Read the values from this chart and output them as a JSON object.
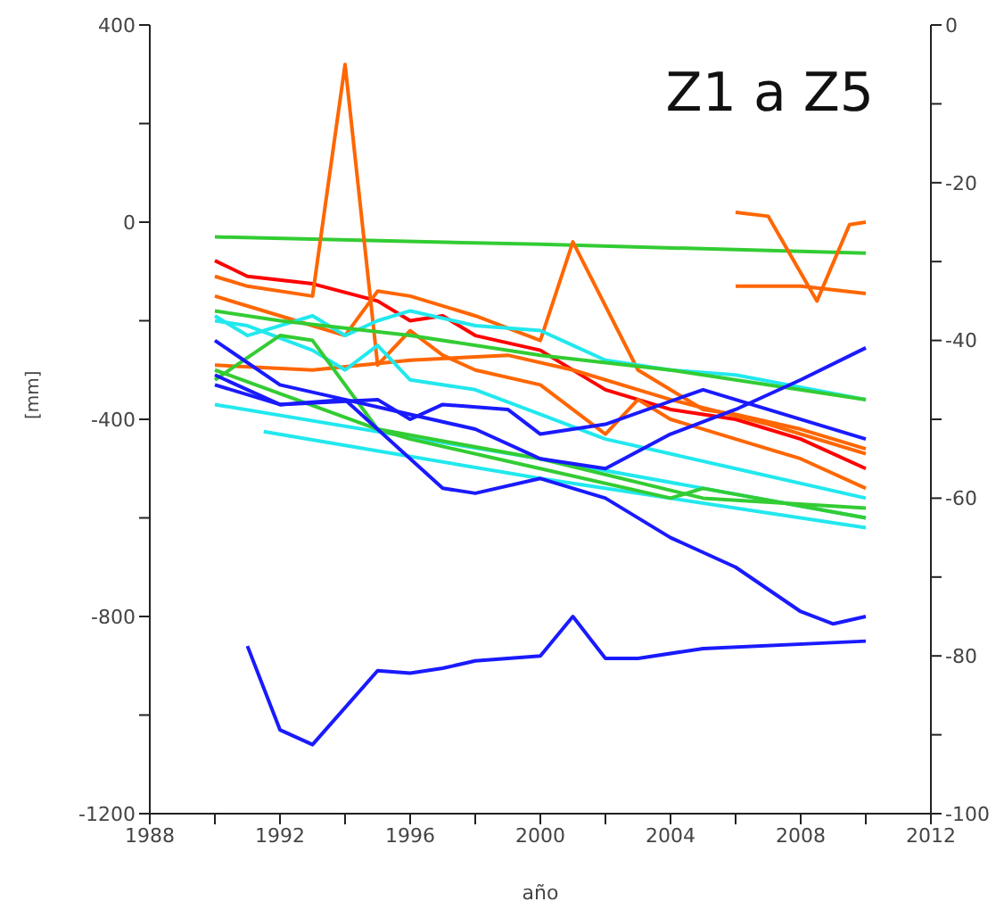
{
  "chart_data": {
    "type": "line",
    "title": "Z1 a Z5",
    "xlabel": "año",
    "ylabel": "[mm]",
    "xlim": [
      1988,
      2012
    ],
    "xticks": [
      1988,
      {
        "value": 1990,
        "label": null
      },
      1992,
      {
        "value": 1994,
        "label": null
      },
      1996,
      {
        "value": 1998,
        "label": null
      },
      2000,
      {
        "value": 2002,
        "label": null
      },
      2004,
      {
        "value": 2006,
        "label": null
      },
      2008,
      {
        "value": 2010,
        "label": null
      },
      2012
    ],
    "ylim": [
      -1200,
      400
    ],
    "yticks": [
      -1200,
      {
        "value": -1000,
        "label": null
      },
      -800,
      {
        "value": -600,
        "label": null
      },
      -400,
      {
        "value": -200,
        "label": null
      },
      0,
      {
        "value": 200,
        "label": null
      },
      400
    ],
    "y2lim": [
      -100,
      0
    ],
    "y2ticks": [
      -100,
      {
        "value": -90,
        "label": null
      },
      -80,
      {
        "value": -70,
        "label": null
      },
      -60,
      {
        "value": -50,
        "label": null
      },
      -40,
      {
        "value": -30,
        "label": null
      },
      -20,
      {
        "value": -10,
        "label": null
      },
      0
    ],
    "series": [
      {
        "color": "#33cc33",
        "x": [
          1990,
          2000,
          2010
        ],
        "values": [
          -30,
          -45,
          -63
        ]
      },
      {
        "color": "#ff0000",
        "x": [
          1990,
          1991,
          1993,
          1995,
          1996,
          1997,
          1998,
          2000,
          2002,
          2004,
          2006,
          2008,
          2010
        ],
        "values": [
          -78,
          -110,
          -125,
          -160,
          -200,
          -190,
          -230,
          -260,
          -340,
          -380,
          -400,
          -440,
          -500
        ]
      },
      {
        "color": "#ff6600",
        "x": [
          1990,
          1991,
          1993,
          1994,
          1995,
          1996,
          1997,
          1998,
          2000,
          2002,
          2003,
          2004,
          2006,
          2008,
          2010
        ],
        "values": [
          -110,
          -130,
          -150,
          320,
          -290,
          -220,
          -270,
          -300,
          -330,
          -430,
          -360,
          -400,
          -440,
          -480,
          -540
        ]
      },
      {
        "color": "#ff6600",
        "x": [
          1990,
          1992,
          1994,
          1995,
          1996,
          1998,
          2000,
          2001,
          2003,
          2005,
          2006,
          2008,
          2010
        ],
        "values": [
          -150,
          -190,
          -230,
          -140,
          -150,
          -190,
          -240,
          -40,
          -300,
          -380,
          -390,
          -420,
          -460
        ]
      },
      {
        "color": "#ff6600",
        "x": [
          1990,
          1993,
          1996,
          1999,
          2001,
          2004,
          2007,
          2010
        ],
        "values": [
          -290,
          -300,
          -280,
          -270,
          -300,
          -360,
          -410,
          -470
        ]
      },
      {
        "color": "#ff6600",
        "x": [
          2006,
          2007,
          2008.5,
          2009.5,
          2010
        ],
        "values": [
          20,
          12,
          -160,
          -5,
          0
        ]
      },
      {
        "color": "#ff6600",
        "x": [
          2006,
          2008,
          2010
        ],
        "values": [
          -130,
          -130,
          -145
        ]
      },
      {
        "color": "#22e8ee",
        "x": [
          1990,
          1991,
          1993,
          1994,
          1995,
          1996,
          1998,
          2000,
          2001,
          2002,
          2004,
          2006,
          2010
        ],
        "values": [
          -190,
          -230,
          -190,
          -230,
          -200,
          -180,
          -210,
          -220,
          -250,
          -280,
          -300,
          -310,
          -360
        ]
      },
      {
        "color": "#22e8ee",
        "x": [
          1990,
          1991,
          1993,
          1994,
          1995,
          1996,
          1998,
          2000,
          2002,
          2006,
          2010
        ],
        "values": [
          -200,
          -210,
          -260,
          -300,
          -250,
          -320,
          -340,
          -390,
          -440,
          -500,
          -560
        ]
      },
      {
        "color": "#22e8ee",
        "x": [
          1990,
          2000,
          2010
        ],
        "values": [
          -370,
          -480,
          -600
        ]
      },
      {
        "color": "#22e8ee",
        "x": [
          1991.5,
          2000,
          2010
        ],
        "values": [
          -425,
          -520,
          -620
        ]
      },
      {
        "color": "#33cc33",
        "x": [
          1990,
          1992,
          1996,
          2000,
          2004,
          2010
        ],
        "values": [
          -180,
          -200,
          -230,
          -270,
          -300,
          -360
        ]
      },
      {
        "color": "#33cc33",
        "x": [
          1990,
          1992,
          1993,
          1995,
          1996,
          2000,
          2004,
          2005,
          2010
        ],
        "values": [
          -320,
          -230,
          -240,
          -420,
          -440,
          -500,
          -560,
          -540,
          -600
        ]
      },
      {
        "color": "#33cc33",
        "x": [
          1990,
          1995,
          2000,
          2005,
          2010
        ],
        "values": [
          -300,
          -420,
          -480,
          -560,
          -580
        ]
      },
      {
        "color": "#1a1aff",
        "x": [
          1990,
          1992,
          1994,
          1997,
          1998,
          2000,
          2002,
          2004,
          2006,
          2008,
          2009,
          2010
        ],
        "values": [
          -240,
          -330,
          -360,
          -540,
          -550,
          -520,
          -560,
          -640,
          -700,
          -790,
          -815,
          -800
        ]
      },
      {
        "color": "#1a1aff",
        "x": [
          1990,
          1992,
          1994,
          1996,
          1998,
          2000,
          2002,
          2004,
          2006,
          2008,
          2010
        ],
        "values": [
          -330,
          -370,
          -360,
          -390,
          -420,
          -480,
          -500,
          -430,
          -380,
          -320,
          -255
        ]
      },
      {
        "color": "#1a1aff",
        "x": [
          1990,
          1992,
          1995,
          1996,
          1997,
          1999,
          2000,
          2002,
          2005,
          2010
        ],
        "values": [
          -310,
          -370,
          -360,
          -400,
          -370,
          -380,
          -430,
          -410,
          -340,
          -440
        ]
      },
      {
        "color": "#1a1aff",
        "x": [
          1991,
          1992,
          1993,
          1995,
          1996,
          1997,
          1998,
          2000,
          2001,
          2002,
          2003,
          2005,
          2010
        ],
        "values": [
          -860,
          -1030,
          -1060,
          -910,
          -915,
          -905,
          -890,
          -880,
          -800,
          -885,
          -885,
          -865,
          -850
        ]
      }
    ]
  }
}
